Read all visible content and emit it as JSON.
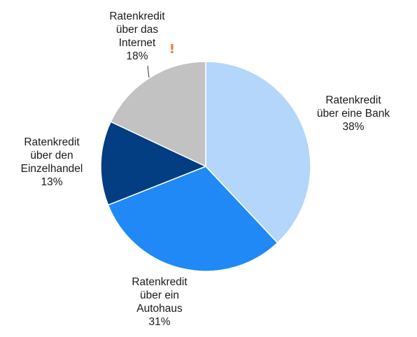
{
  "chart_data": {
    "type": "pie",
    "title": "",
    "unit": "%",
    "slices": [
      {
        "label_lines": [
          "Ratenkredit",
          "über eine Bank"
        ],
        "value": 38,
        "value_label": "38%",
        "color": "#b3d6fa"
      },
      {
        "label_lines": [
          "Ratenkredit",
          "über ein",
          "Autohaus"
        ],
        "value": 31,
        "value_label": "31%",
        "color": "#2089f5"
      },
      {
        "label_lines": [
          "Ratenkredit",
          "über den",
          "Einzelhandel"
        ],
        "value": 13,
        "value_label": "13%",
        "color": "#033d82"
      },
      {
        "label_lines": [
          "Ratenkredit",
          "über das",
          "Internet"
        ],
        "value": 18,
        "value_label": "18%",
        "color": "#c2c2c2"
      }
    ],
    "annotation": {
      "text": "!",
      "color": "#e8792a"
    }
  }
}
